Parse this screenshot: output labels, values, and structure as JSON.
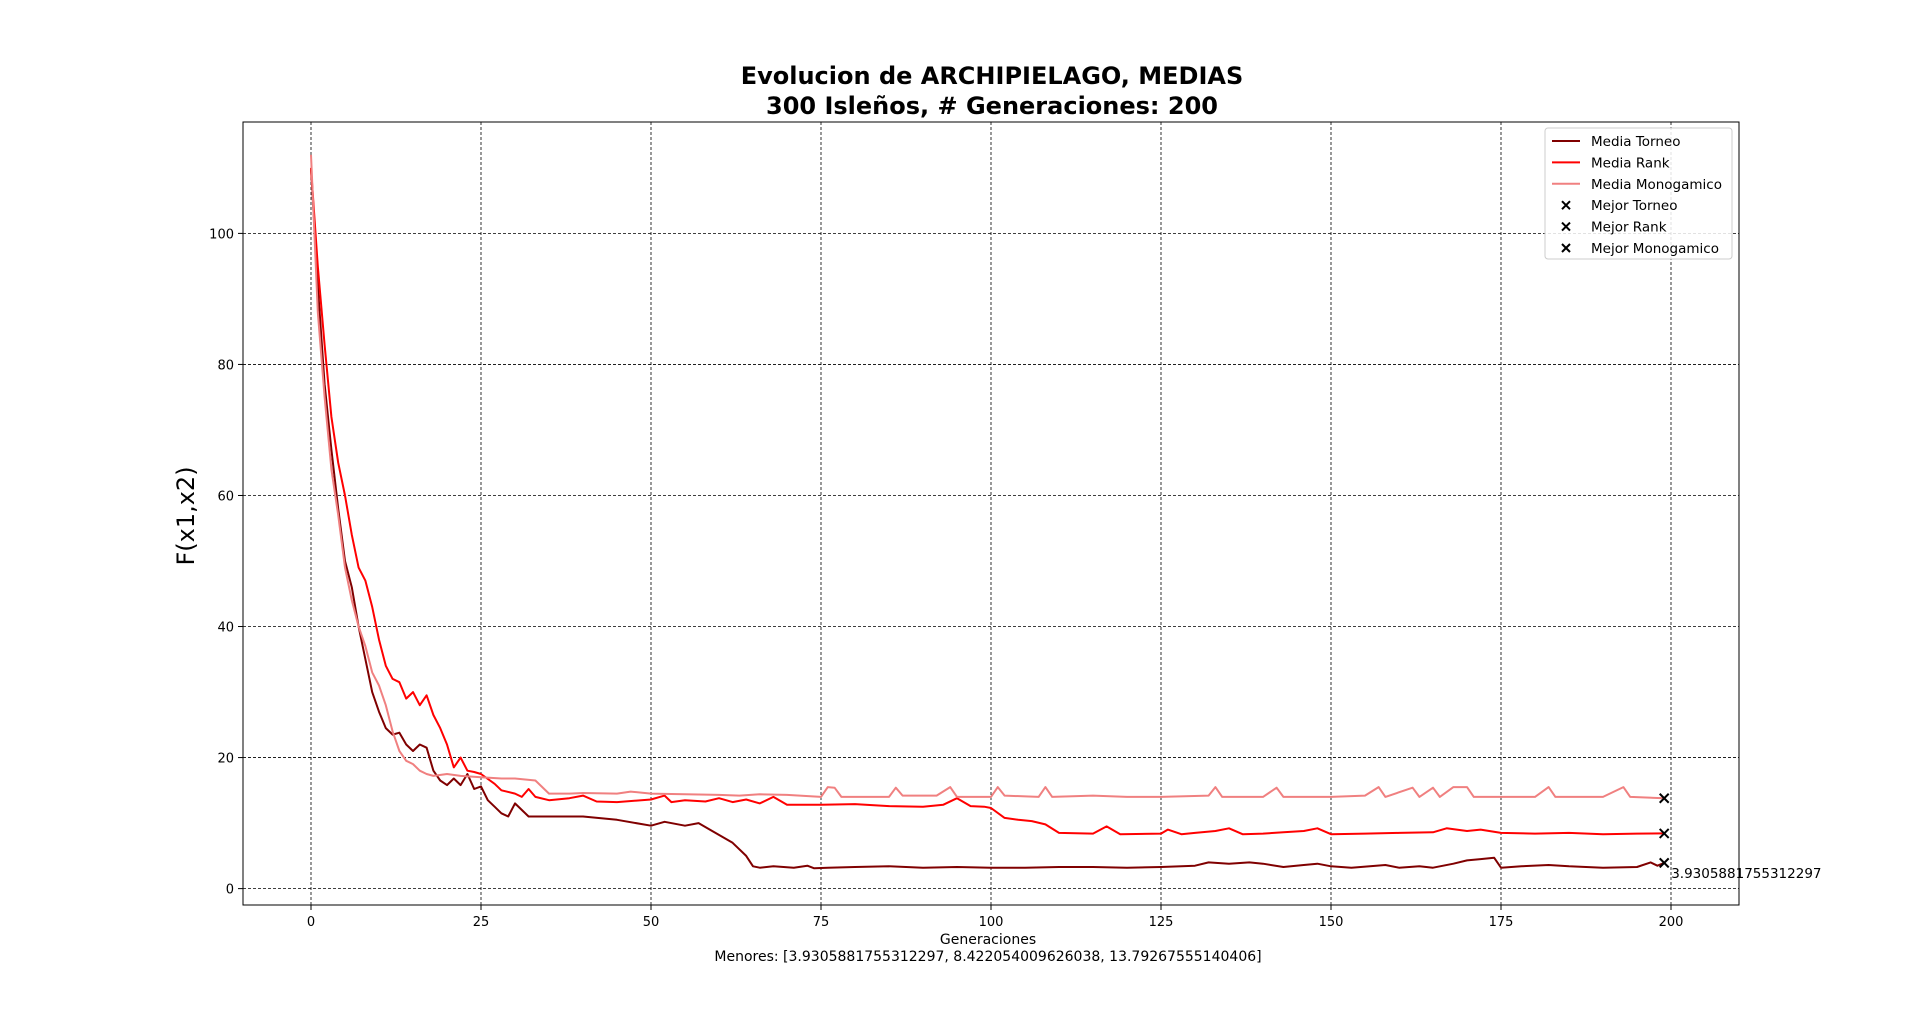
{
  "chart_data": {
    "type": "line",
    "title": "Evolucion de ARCHIPIELAGO, MEDIAS",
    "subtitle": "300 Isleños, # Generaciones: 200",
    "xlabel": "Generaciones",
    "ylabel": "F(x1,x2)",
    "footer": "Menores: [3.9305881755312297, 8.422054009626038, 13.79267555140406]",
    "xlim": [
      -10,
      210
    ],
    "ylim": [
      -2.5,
      117
    ],
    "xticks": [
      0,
      25,
      50,
      75,
      100,
      125,
      150,
      175,
      200
    ],
    "yticks": [
      0,
      20,
      40,
      60,
      80,
      100
    ],
    "grid": true,
    "legend_position": "top-right",
    "series": [
      {
        "name": "Media Torneo",
        "color": "#800000",
        "points": [
          [
            0,
            110
          ],
          [
            1,
            92
          ],
          [
            2,
            77
          ],
          [
            3,
            67
          ],
          [
            4,
            58
          ],
          [
            5,
            50
          ],
          [
            6,
            46
          ],
          [
            7,
            40
          ],
          [
            8,
            35
          ],
          [
            9,
            30
          ],
          [
            10,
            27
          ],
          [
            11,
            24.5
          ],
          [
            12,
            23.5
          ],
          [
            13,
            23.8
          ],
          [
            14,
            22
          ],
          [
            15,
            21
          ],
          [
            16,
            22
          ],
          [
            17,
            21.5
          ],
          [
            18,
            18
          ],
          [
            19,
            16.5
          ],
          [
            20,
            15.8
          ],
          [
            21,
            16.8
          ],
          [
            22,
            15.8
          ],
          [
            23,
            17.5
          ],
          [
            24,
            15.2
          ],
          [
            25,
            15.6
          ],
          [
            26,
            13.5
          ],
          [
            27,
            12.5
          ],
          [
            28,
            11.5
          ],
          [
            29,
            11
          ],
          [
            30,
            13
          ],
          [
            32,
            11
          ],
          [
            35,
            11
          ],
          [
            40,
            11
          ],
          [
            45,
            10.5
          ],
          [
            50,
            9.6
          ],
          [
            52,
            10.2
          ],
          [
            55,
            9.6
          ],
          [
            57,
            10
          ],
          [
            59,
            8.8
          ],
          [
            62,
            7
          ],
          [
            64,
            5
          ],
          [
            65,
            3.4
          ],
          [
            66,
            3.2
          ],
          [
            68,
            3.4
          ],
          [
            71,
            3.2
          ],
          [
            73,
            3.5
          ],
          [
            74,
            3.1
          ],
          [
            76,
            3.2
          ],
          [
            80,
            3.3
          ],
          [
            85,
            3.4
          ],
          [
            90,
            3.2
          ],
          [
            95,
            3.3
          ],
          [
            100,
            3.2
          ],
          [
            105,
            3.2
          ],
          [
            110,
            3.3
          ],
          [
            115,
            3.3
          ],
          [
            120,
            3.2
          ],
          [
            125,
            3.3
          ],
          [
            130,
            3.5
          ],
          [
            132,
            4
          ],
          [
            135,
            3.8
          ],
          [
            138,
            4
          ],
          [
            140,
            3.8
          ],
          [
            143,
            3.3
          ],
          [
            146,
            3.6
          ],
          [
            148,
            3.8
          ],
          [
            150,
            3.4
          ],
          [
            153,
            3.2
          ],
          [
            158,
            3.6
          ],
          [
            160,
            3.2
          ],
          [
            163,
            3.4
          ],
          [
            165,
            3.2
          ],
          [
            168,
            3.8
          ],
          [
            170,
            4.3
          ],
          [
            172,
            4.5
          ],
          [
            174,
            4.7
          ],
          [
            175,
            3.2
          ],
          [
            178,
            3.4
          ],
          [
            182,
            3.6
          ],
          [
            185,
            3.4
          ],
          [
            190,
            3.2
          ],
          [
            195,
            3.3
          ],
          [
            197,
            4
          ],
          [
            198,
            3.5
          ],
          [
            199,
            3.93
          ]
        ]
      },
      {
        "name": "Media Rank",
        "color": "#ff0000",
        "points": [
          [
            0,
            110
          ],
          [
            1,
            95
          ],
          [
            2,
            83
          ],
          [
            3,
            72
          ],
          [
            4,
            65
          ],
          [
            5,
            60
          ],
          [
            6,
            54
          ],
          [
            7,
            49
          ],
          [
            8,
            47
          ],
          [
            9,
            43
          ],
          [
            10,
            38
          ],
          [
            11,
            34
          ],
          [
            12,
            32
          ],
          [
            13,
            31.5
          ],
          [
            14,
            29
          ],
          [
            15,
            30
          ],
          [
            16,
            28
          ],
          [
            17,
            29.5
          ],
          [
            18,
            26.5
          ],
          [
            19,
            24.5
          ],
          [
            20,
            22
          ],
          [
            21,
            18.5
          ],
          [
            22,
            20
          ],
          [
            23,
            18
          ],
          [
            24,
            17.8
          ],
          [
            25,
            17.5
          ],
          [
            27,
            16
          ],
          [
            28,
            15
          ],
          [
            30,
            14.5
          ],
          [
            31,
            14
          ],
          [
            32,
            15.2
          ],
          [
            33,
            14
          ],
          [
            35,
            13.5
          ],
          [
            38,
            13.8
          ],
          [
            40,
            14.2
          ],
          [
            42,
            13.3
          ],
          [
            45,
            13.2
          ],
          [
            50,
            13.6
          ],
          [
            52,
            14.2
          ],
          [
            53,
            13.2
          ],
          [
            55,
            13.5
          ],
          [
            58,
            13.3
          ],
          [
            60,
            13.8
          ],
          [
            62,
            13.2
          ],
          [
            64,
            13.6
          ],
          [
            66,
            13
          ],
          [
            68,
            14
          ],
          [
            70,
            12.8
          ],
          [
            75,
            12.8
          ],
          [
            80,
            12.9
          ],
          [
            85,
            12.6
          ],
          [
            90,
            12.5
          ],
          [
            93,
            12.8
          ],
          [
            95,
            13.8
          ],
          [
            97,
            12.6
          ],
          [
            99,
            12.5
          ],
          [
            100,
            12.3
          ],
          [
            102,
            10.8
          ],
          [
            104,
            10.5
          ],
          [
            106,
            10.3
          ],
          [
            108,
            9.8
          ],
          [
            110,
            8.5
          ],
          [
            115,
            8.4
          ],
          [
            117,
            9.5
          ],
          [
            119,
            8.3
          ],
          [
            125,
            8.4
          ],
          [
            126,
            9
          ],
          [
            128,
            8.3
          ],
          [
            130,
            8.5
          ],
          [
            133,
            8.8
          ],
          [
            135,
            9.2
          ],
          [
            137,
            8.3
          ],
          [
            140,
            8.4
          ],
          [
            143,
            8.6
          ],
          [
            146,
            8.8
          ],
          [
            148,
            9.2
          ],
          [
            150,
            8.3
          ],
          [
            155,
            8.4
          ],
          [
            160,
            8.5
          ],
          [
            165,
            8.6
          ],
          [
            167,
            9.2
          ],
          [
            170,
            8.8
          ],
          [
            172,
            9
          ],
          [
            175,
            8.5
          ],
          [
            180,
            8.4
          ],
          [
            185,
            8.5
          ],
          [
            190,
            8.3
          ],
          [
            195,
            8.4
          ],
          [
            199,
            8.42
          ]
        ]
      },
      {
        "name": "Media Monogamico",
        "color": "#f08080",
        "points": [
          [
            0,
            112
          ],
          [
            1,
            88
          ],
          [
            2,
            75
          ],
          [
            3,
            64
          ],
          [
            4,
            57
          ],
          [
            5,
            49
          ],
          [
            6,
            44
          ],
          [
            7,
            40
          ],
          [
            8,
            37
          ],
          [
            9,
            33
          ],
          [
            10,
            31
          ],
          [
            11,
            28
          ],
          [
            12,
            24
          ],
          [
            13,
            21
          ],
          [
            14,
            19.5
          ],
          [
            15,
            19
          ],
          [
            16,
            18
          ],
          [
            17,
            17.5
          ],
          [
            18,
            17.2
          ],
          [
            20,
            17.5
          ],
          [
            22,
            17.2
          ],
          [
            25,
            17
          ],
          [
            28,
            16.8
          ],
          [
            30,
            16.8
          ],
          [
            33,
            16.5
          ],
          [
            35,
            14.5
          ],
          [
            38,
            14.5
          ],
          [
            40,
            14.6
          ],
          [
            45,
            14.5
          ],
          [
            47,
            14.8
          ],
          [
            50,
            14.5
          ],
          [
            55,
            14.4
          ],
          [
            60,
            14.3
          ],
          [
            63,
            14.2
          ],
          [
            66,
            14.4
          ],
          [
            70,
            14.3
          ],
          [
            75,
            14
          ],
          [
            76,
            15.5
          ],
          [
            77,
            15.4
          ],
          [
            78,
            14
          ],
          [
            85,
            14
          ],
          [
            86,
            15.4
          ],
          [
            87,
            14.2
          ],
          [
            92,
            14.2
          ],
          [
            94,
            15.5
          ],
          [
            95,
            14
          ],
          [
            100,
            14
          ],
          [
            101,
            15.5
          ],
          [
            102,
            14.2
          ],
          [
            107,
            14
          ],
          [
            108,
            15.5
          ],
          [
            109,
            14
          ],
          [
            115,
            14.2
          ],
          [
            120,
            14
          ],
          [
            125,
            14
          ],
          [
            132,
            14.2
          ],
          [
            133,
            15.5
          ],
          [
            134,
            14
          ],
          [
            140,
            14
          ],
          [
            142,
            15.4
          ],
          [
            143,
            14
          ],
          [
            150,
            14
          ],
          [
            155,
            14.2
          ],
          [
            157,
            15.5
          ],
          [
            158,
            14
          ],
          [
            162,
            15.4
          ],
          [
            163,
            14
          ],
          [
            165,
            15.4
          ],
          [
            166,
            14
          ],
          [
            168,
            15.5
          ],
          [
            170,
            15.5
          ],
          [
            171,
            14
          ],
          [
            175,
            14
          ],
          [
            180,
            14
          ],
          [
            182,
            15.5
          ],
          [
            183,
            14
          ],
          [
            190,
            14
          ],
          [
            193,
            15.5
          ],
          [
            194,
            14
          ],
          [
            199,
            13.79
          ]
        ]
      }
    ],
    "best_markers": [
      {
        "name": "Mejor Torneo",
        "x": 199,
        "y": 3.9305881755312297,
        "marker": "x",
        "color": "#000000"
      },
      {
        "name": "Mejor Rank",
        "x": 199,
        "y": 8.422054009626038,
        "marker": "x",
        "color": "#000000"
      },
      {
        "name": "Mejor Monogamico",
        "x": 199,
        "y": 13.79267555140406,
        "marker": "x",
        "color": "#000000"
      }
    ],
    "annotation": {
      "text": "3.9305881755312297",
      "x": 199,
      "y": 3.9305881755312297
    }
  }
}
